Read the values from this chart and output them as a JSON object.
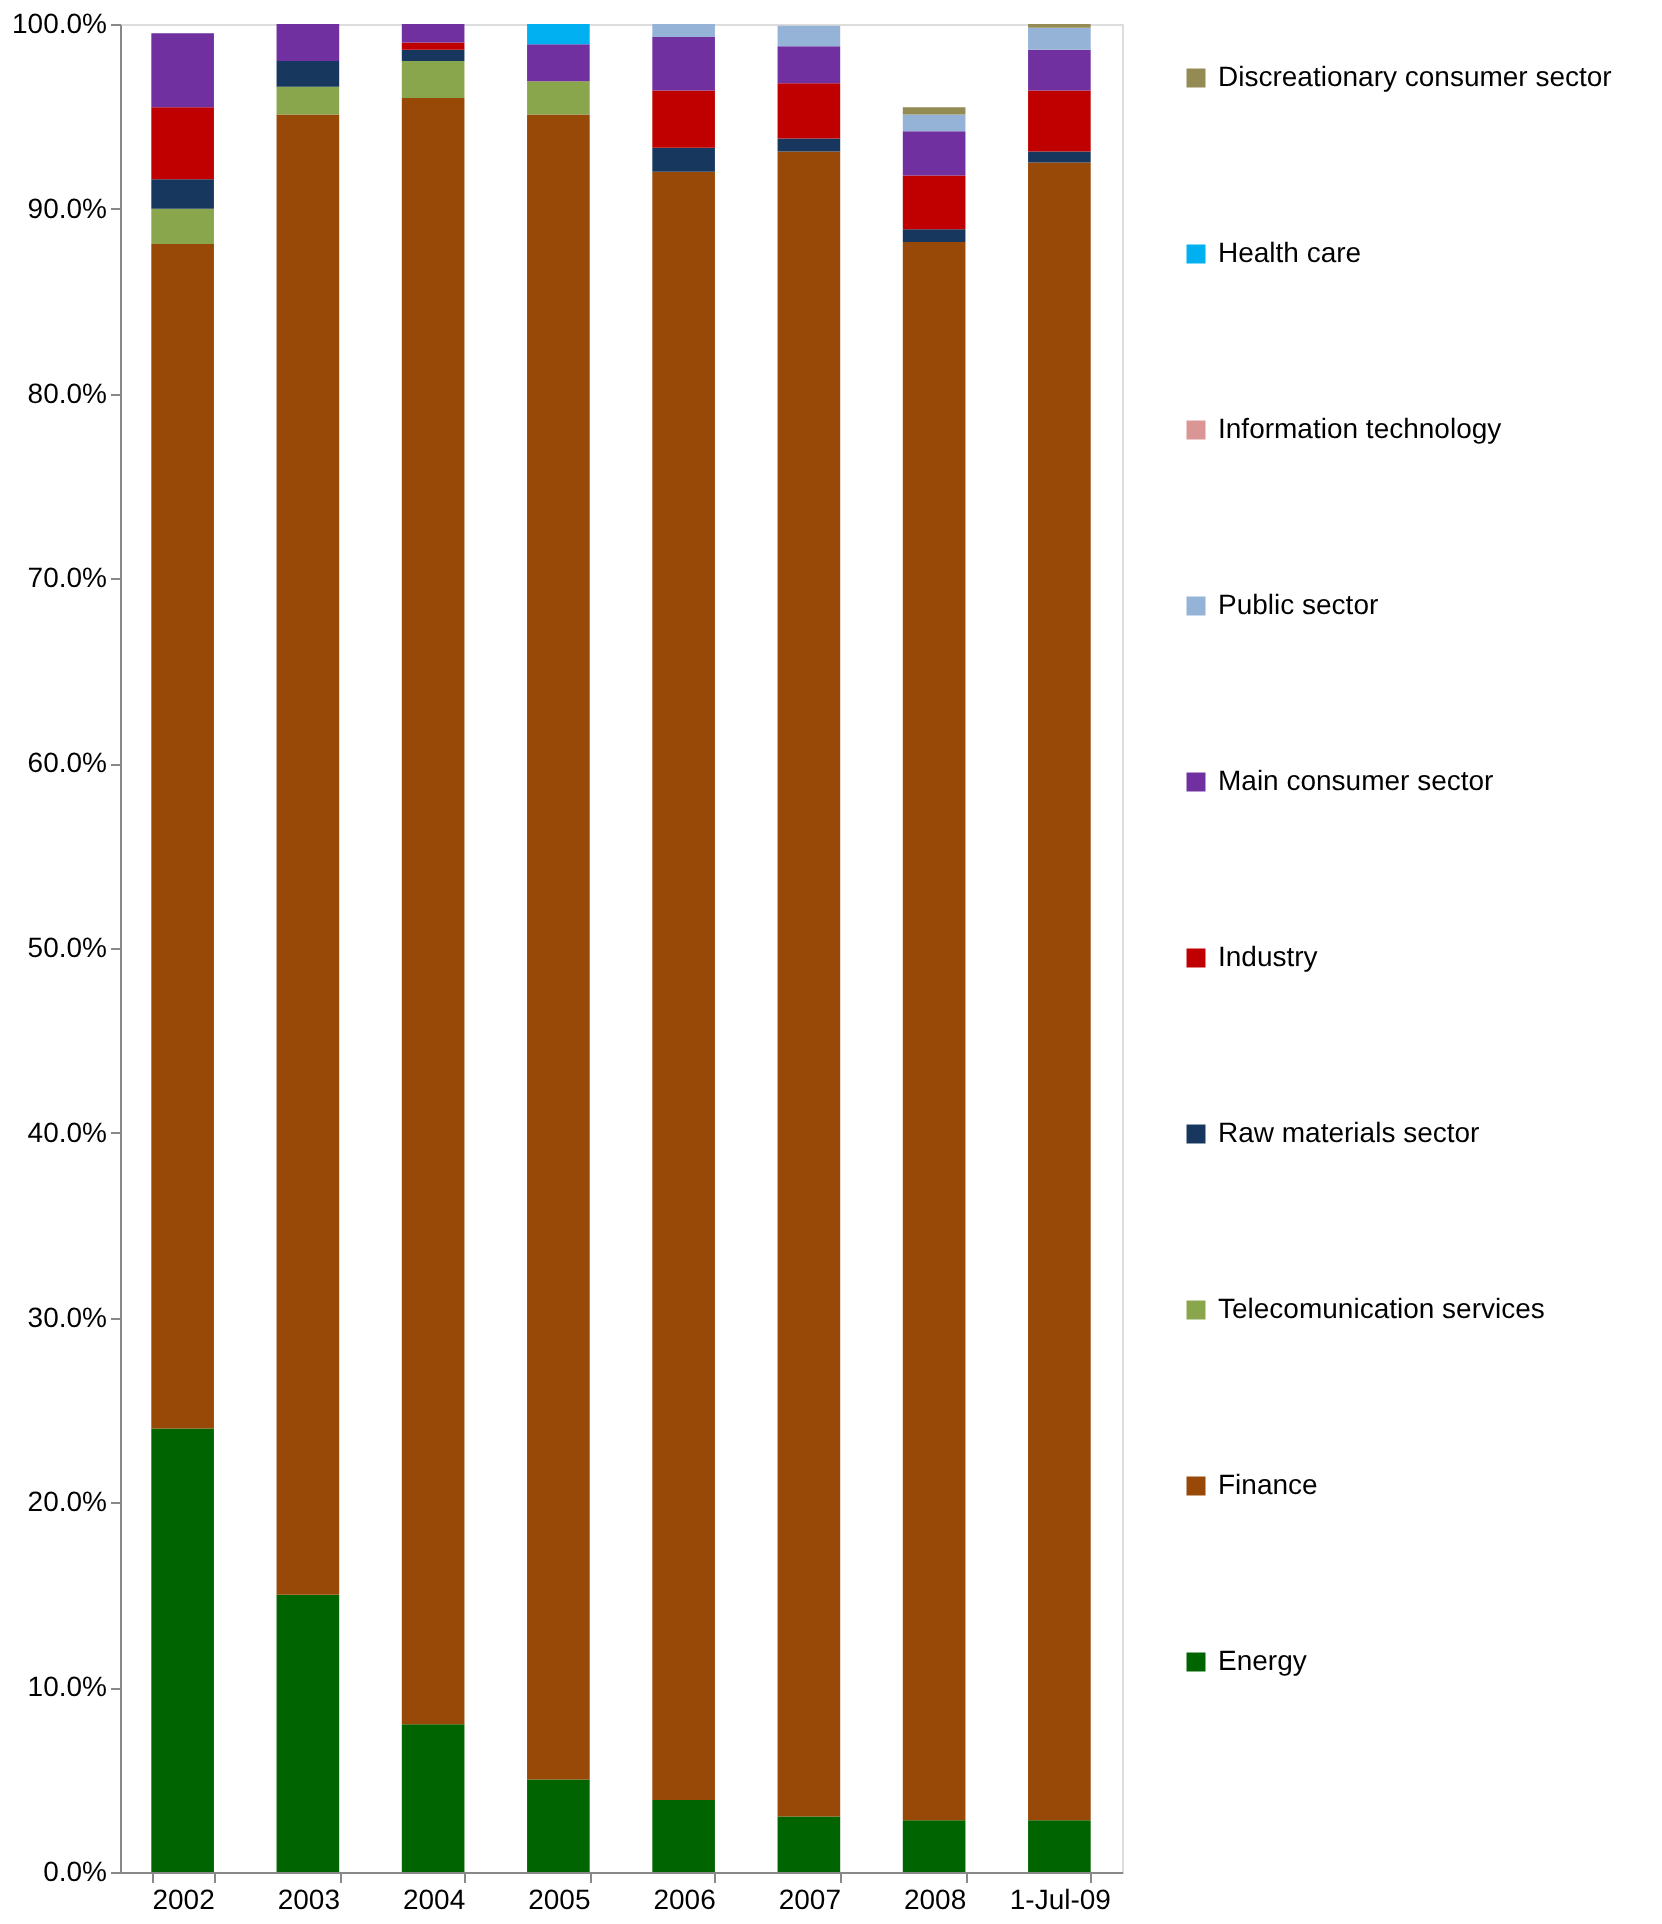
{
  "chart_data": {
    "type": "bar",
    "stacked": true,
    "legend": "right",
    "grid": false,
    "categories": [
      "2002",
      "2003",
      "2004",
      "2005",
      "2006",
      "2007",
      "2008",
      "1-Jul-09"
    ],
    "ylim": [
      0,
      100
    ],
    "yticks": [
      {
        "value": 0,
        "label": "0.0%"
      },
      {
        "value": 10,
        "label": "10.0%"
      },
      {
        "value": 20,
        "label": "20.0%"
      },
      {
        "value": 30,
        "label": "30.0%"
      },
      {
        "value": 40,
        "label": "40.0%"
      },
      {
        "value": 50,
        "label": "50.0%"
      },
      {
        "value": 60,
        "label": "60.0%"
      },
      {
        "value": 70,
        "label": "70.0%"
      },
      {
        "value": 80,
        "label": "80.0%"
      },
      {
        "value": 90,
        "label": "90.0%"
      },
      {
        "value": 100,
        "label": "100.0%"
      }
    ],
    "series": [
      {
        "name": "Energy",
        "color": "#006400",
        "values": [
          24,
          15,
          8,
          5,
          3.9,
          3,
          2.8,
          2.8
        ]
      },
      {
        "name": "Finance",
        "color": "#984807",
        "values": [
          64.1,
          80.1,
          88,
          90.1,
          88.1,
          90.1,
          85.4,
          89.7
        ]
      },
      {
        "name": "Telecomunication services",
        "color": "#8aa64c",
        "values": [
          1.9,
          1.5,
          2,
          1.8,
          null,
          null,
          null,
          null
        ]
      },
      {
        "name": "Raw materials sector",
        "color": "#17375e",
        "values": [
          1.6,
          1.4,
          0.6,
          null,
          1.3,
          0.7,
          0.7,
          0.6
        ]
      },
      {
        "name": "Industry",
        "color": "#c00000",
        "values": [
          3.9,
          null,
          0.4,
          null,
          3.1,
          3,
          2.9,
          3.3
        ]
      },
      {
        "name": "Main consumer sector",
        "color": "#7030a0",
        "values": [
          4,
          2,
          1,
          2,
          2.9,
          2,
          2.4,
          2.2
        ]
      },
      {
        "name": "Public sector",
        "color": "#95b3d7",
        "values": [
          null,
          null,
          null,
          null,
          0.7,
          1.1,
          0.9,
          1.2
        ]
      },
      {
        "name": "Information technology",
        "color": "#d99694",
        "values": [
          null,
          null,
          null,
          null,
          null,
          null,
          null,
          null
        ]
      },
      {
        "name": "Health care",
        "color": "#00b0f0",
        "values": [
          null,
          null,
          null,
          1.1,
          null,
          null,
          null,
          null
        ]
      },
      {
        "name": "Discreationary consumer sector",
        "color": "#948a54",
        "values": [
          null,
          null,
          null,
          null,
          null,
          null,
          0.4,
          0.2
        ]
      }
    ]
  }
}
